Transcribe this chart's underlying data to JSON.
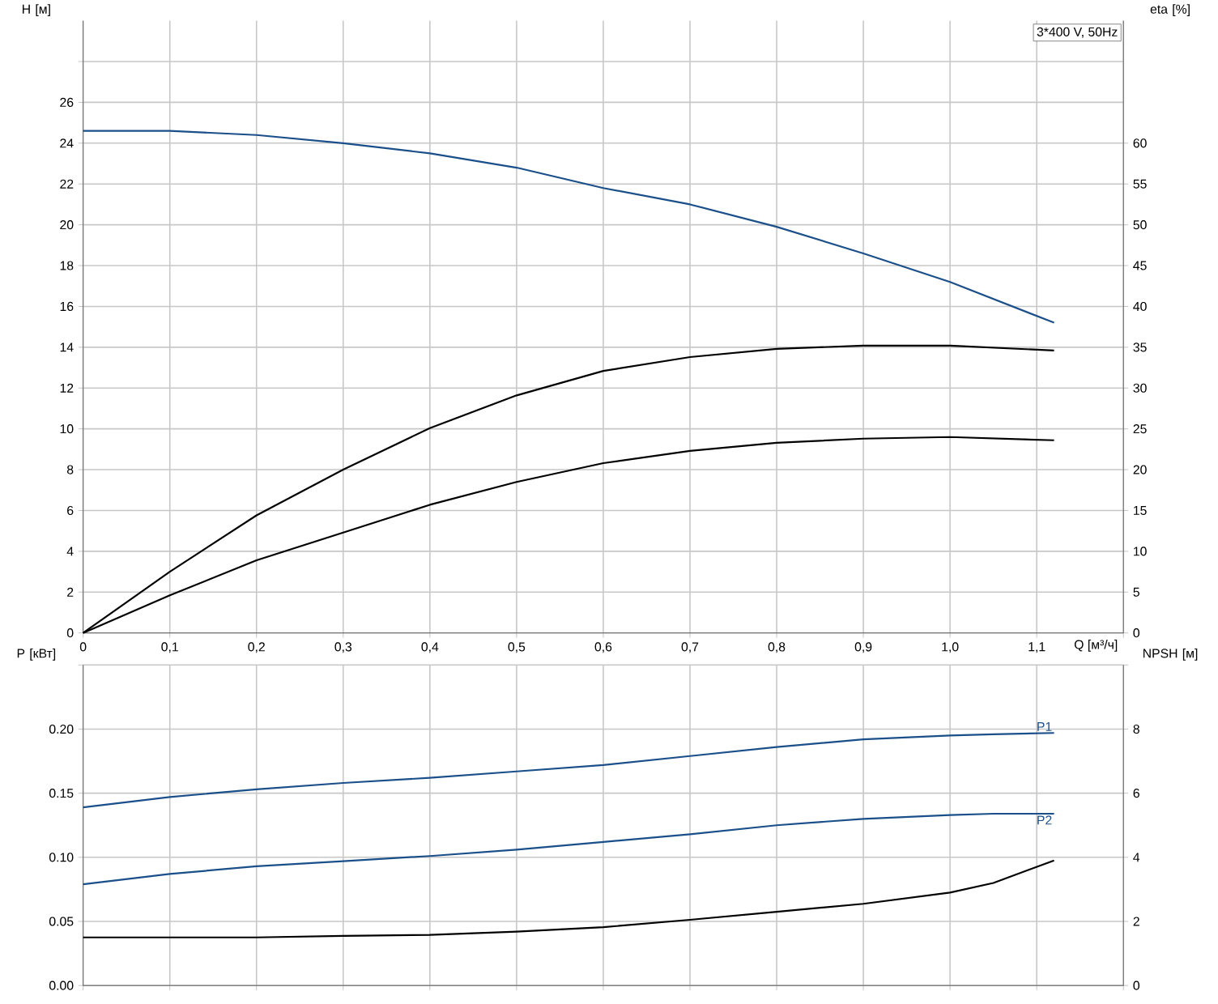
{
  "chart_data": [
    {
      "type": "line",
      "xlabel": "Q [м³/ч]",
      "ylabel": "H [м]",
      "y2label": "eta [%]",
      "x": [
        0,
        0.1,
        0.2,
        0.3,
        0.4,
        0.5,
        0.6,
        0.7,
        0.8,
        0.9,
        1.0,
        1.12
      ],
      "series": [
        {
          "color": "#1a4f8a",
          "values": [
            24.6,
            24.6,
            24.4,
            24.0,
            23.5,
            22.8,
            21.8,
            21.0,
            19.9,
            18.6,
            17.2,
            15.2
          ]
        },
        {
          "color": "#000000",
          "axis": "y2",
          "values": [
            0,
            7.5,
            14.4,
            20.0,
            25.1,
            29.1,
            32.1,
            33.8,
            34.8,
            35.2,
            35.2,
            34.6
          ]
        },
        {
          "color": "#000000",
          "axis": "y2",
          "values": [
            0,
            4.6,
            8.9,
            12.3,
            15.7,
            18.5,
            20.8,
            22.3,
            23.3,
            23.8,
            24.0,
            23.6
          ]
        }
      ],
      "xlim": [
        0,
        1.2
      ],
      "xticks": [
        {
          "value": 0,
          "label": "0"
        },
        {
          "value": 0.1,
          "label": "0,1"
        },
        {
          "value": 0.2,
          "label": "0,2"
        },
        {
          "value": 0.3,
          "label": "0,3"
        },
        {
          "value": 0.4,
          "label": "0,4"
        },
        {
          "value": 0.5,
          "label": "0,5"
        },
        {
          "value": 0.6,
          "label": "0,6"
        },
        {
          "value": 0.7,
          "label": "0,7"
        },
        {
          "value": 0.8,
          "label": "0,8"
        },
        {
          "value": 0.9,
          "label": "0,9"
        },
        {
          "value": 1.0,
          "label": "1,0"
        },
        {
          "value": 1.1,
          "label": "1,1"
        },
        {
          "value": 1.2,
          "label": null
        }
      ],
      "ylim": [
        0,
        30
      ],
      "yticks": [
        0,
        2,
        4,
        6,
        8,
        10,
        12,
        14,
        16,
        18,
        20,
        22,
        24,
        26,
        {
          "value": 28,
          "label": null
        }
      ],
      "y2lim": [
        0,
        75
      ],
      "y2ticks": [
        0,
        5,
        10,
        15,
        20,
        25,
        30,
        35,
        40,
        45,
        50,
        55,
        60
      ],
      "grid": true,
      "marker": "none",
      "line_style": "solid",
      "annotations": [
        "3*400 V, 50Hz"
      ]
    },
    {
      "type": "line",
      "ylabel": "P [кВт]",
      "y2label": "NPSH [м]",
      "x": [
        0,
        0.1,
        0.2,
        0.3,
        0.4,
        0.5,
        0.6,
        0.7,
        0.8,
        0.9,
        1.0,
        1.05,
        1.12
      ],
      "series": [
        {
          "name": "P1",
          "color": "#1a4f8a",
          "values": [
            0.139,
            0.147,
            0.153,
            0.158,
            0.162,
            0.167,
            0.172,
            0.179,
            0.186,
            0.192,
            0.195,
            0.196,
            0.197
          ]
        },
        {
          "name": "P2",
          "color": "#1a4f8a",
          "values": [
            0.079,
            0.087,
            0.093,
            0.097,
            0.101,
            0.106,
            0.112,
            0.118,
            0.125,
            0.13,
            0.133,
            0.134,
            0.134
          ]
        },
        {
          "color": "#000000",
          "axis": "y2",
          "values": [
            1.5,
            1.5,
            1.5,
            1.55,
            1.58,
            1.68,
            1.82,
            2.05,
            2.3,
            2.55,
            2.9,
            3.2,
            3.9
          ]
        }
      ],
      "xlim": [
        0,
        1.2
      ],
      "xticks": [
        {
          "value": 0,
          "label": null
        },
        {
          "value": 0.1,
          "label": null
        },
        {
          "value": 0.2,
          "label": null
        },
        {
          "value": 0.3,
          "label": null
        },
        {
          "value": 0.4,
          "label": null
        },
        {
          "value": 0.5,
          "label": null
        },
        {
          "value": 0.6,
          "label": null
        },
        {
          "value": 0.7,
          "label": null
        },
        {
          "value": 0.8,
          "label": null
        },
        {
          "value": 0.9,
          "label": null
        },
        {
          "value": 1.0,
          "label": null
        },
        {
          "value": 1.1,
          "label": null
        },
        {
          "value": 1.2,
          "label": null
        }
      ],
      "ylim": [
        0,
        0.25
      ],
      "yticks": [
        {
          "value": 0,
          "label": "0.00"
        },
        {
          "value": 0.05,
          "label": "0.05"
        },
        {
          "value": 0.1,
          "label": "0.10"
        },
        {
          "value": 0.15,
          "label": "0.15"
        },
        {
          "value": 0.2,
          "label": "0.20"
        },
        {
          "value": 0.25,
          "label": null
        }
      ],
      "y2lim": [
        0,
        10
      ],
      "y2ticks": [
        0,
        2,
        4,
        6,
        8,
        {
          "value": 10,
          "label": null
        }
      ],
      "grid": true,
      "marker": "none",
      "line_style": "solid",
      "tick_labels": "y"
    }
  ]
}
